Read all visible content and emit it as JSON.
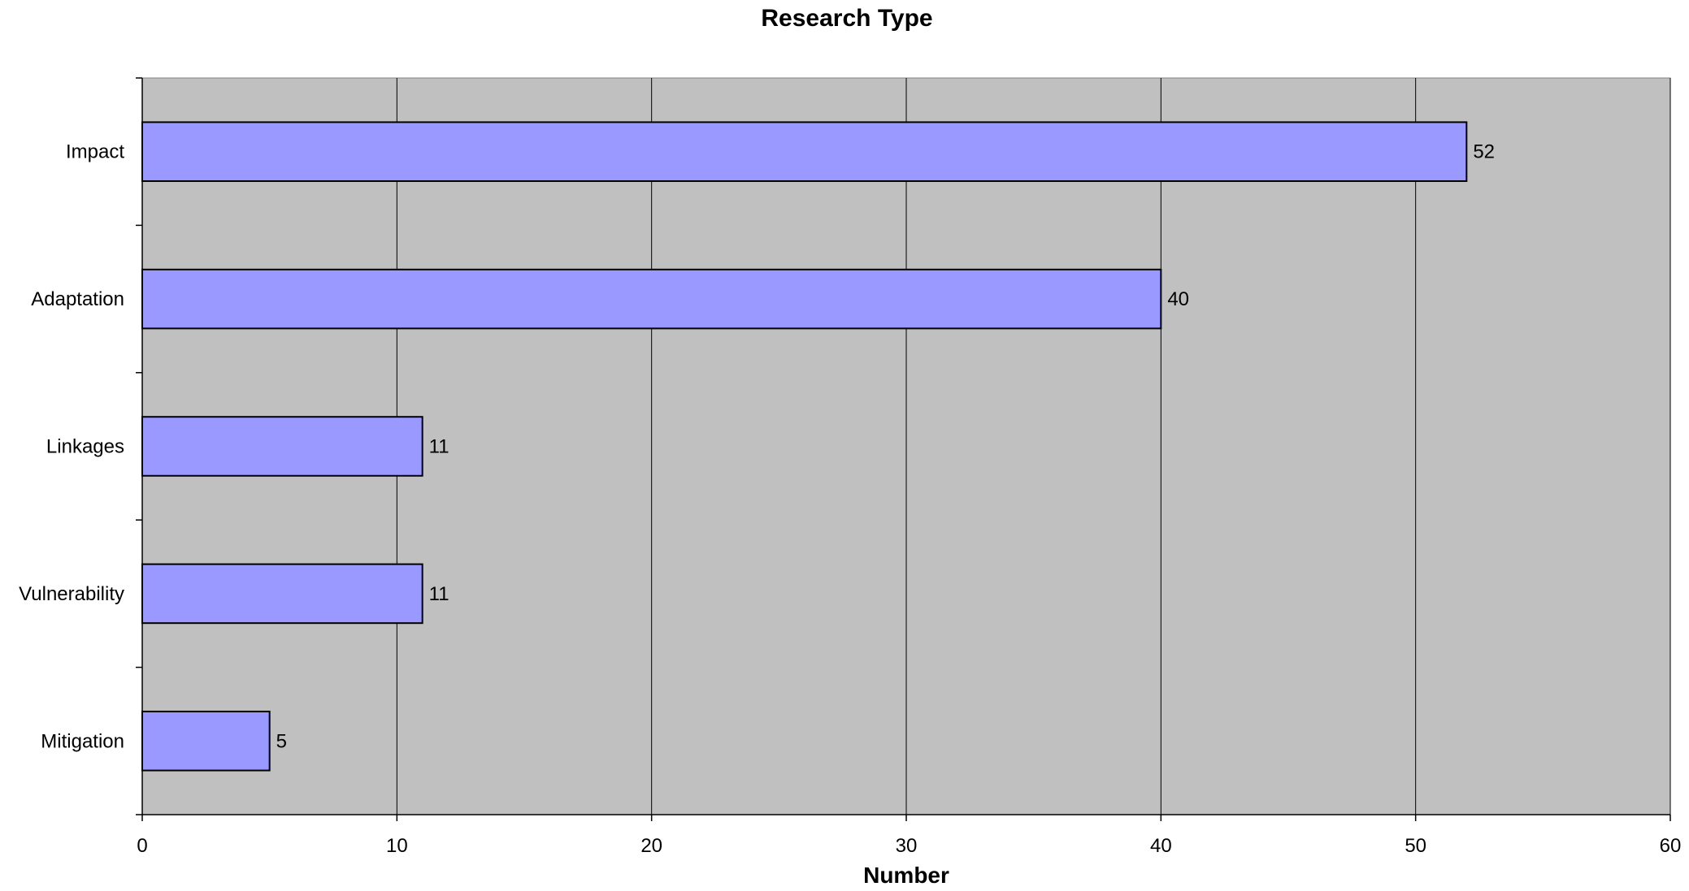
{
  "chart_data": {
    "type": "bar",
    "orientation": "horizontal",
    "title": "Research Type",
    "xlabel": "Number",
    "ylabel": "",
    "categories": [
      "Impact",
      "Adaptation",
      "Linkages",
      "Vulnerability",
      "Mitigation"
    ],
    "values": [
      52,
      40,
      11,
      11,
      5
    ],
    "xlim": [
      0,
      60
    ],
    "xticks": [
      0,
      10,
      20,
      30,
      40,
      50,
      60
    ],
    "grid": "vertical",
    "legend": "none",
    "data_labels": true,
    "colors": {
      "plot_background": "#c0c0c0",
      "bar_fill": "#9999ff",
      "bar_stroke": "#000000",
      "grid": "#000000"
    }
  }
}
